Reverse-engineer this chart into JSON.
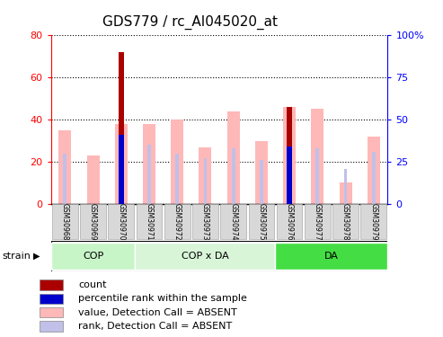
{
  "title": "GDS779 / rc_AI045020_at",
  "samples": [
    "GSM30968",
    "GSM30969",
    "GSM30970",
    "GSM30971",
    "GSM30972",
    "GSM30973",
    "GSM30974",
    "GSM30975",
    "GSM30976",
    "GSM30977",
    "GSM30978",
    "GSM30979"
  ],
  "count_values": [
    0,
    0,
    72,
    0,
    0,
    0,
    0,
    0,
    46,
    0,
    0,
    0
  ],
  "percentile_values": [
    0,
    0,
    41,
    0,
    0,
    0,
    0,
    0,
    34,
    0,
    0,
    0
  ],
  "absent_value_values": [
    35,
    23,
    38,
    38,
    40,
    27,
    44,
    30,
    46,
    45,
    10,
    32
  ],
  "absent_rank_values": [
    30,
    0,
    0,
    35,
    30,
    27,
    33,
    26,
    0,
    33,
    21,
    31
  ],
  "count_color": "#aa0000",
  "percentile_color": "#0000cc",
  "absent_value_color": "#ffb8b8",
  "absent_rank_color": "#c0c0e8",
  "ylim_left": [
    0,
    80
  ],
  "ylim_right": [
    0,
    100
  ],
  "yticks_left": [
    0,
    20,
    40,
    60,
    80
  ],
  "ytick_labels_left": [
    "0",
    "20",
    "40",
    "60",
    "80"
  ],
  "yticks_right": [
    0,
    25,
    50,
    75,
    100
  ],
  "ytick_labels_right": [
    "0",
    "25",
    "50",
    "75",
    "100%"
  ],
  "groups": [
    {
      "name": "COP",
      "start": 0,
      "end": 2,
      "color": "#c8f5c8"
    },
    {
      "name": "COP x DA",
      "start": 3,
      "end": 7,
      "color": "#d8f5d8"
    },
    {
      "name": "DA",
      "start": 8,
      "end": 11,
      "color": "#44dd44"
    }
  ],
  "strain_label": "strain",
  "legend_items": [
    {
      "label": "count",
      "color": "#aa0000"
    },
    {
      "label": "percentile rank within the sample",
      "color": "#0000cc"
    },
    {
      "label": "value, Detection Call = ABSENT",
      "color": "#ffb8b8"
    },
    {
      "label": "rank, Detection Call = ABSENT",
      "color": "#c0c0e8"
    }
  ],
  "title_fontsize": 11,
  "axis_label_fontsize": 8,
  "legend_fontsize": 8
}
